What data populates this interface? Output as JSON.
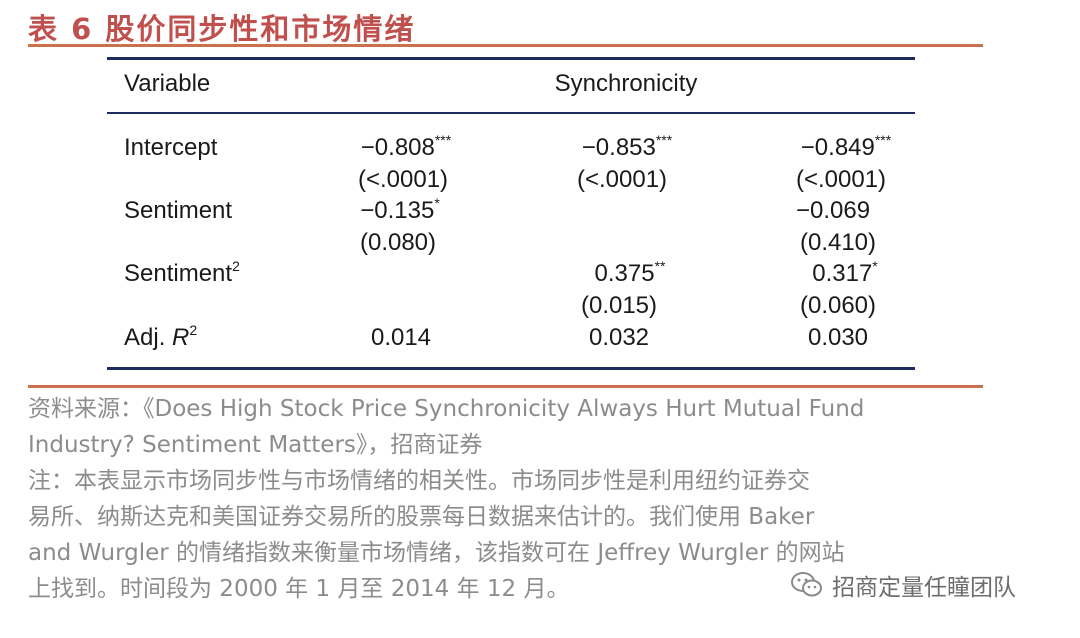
{
  "title": "表 6  股价同步性和市场情绪",
  "table": {
    "header": {
      "variable": "Variable",
      "group": "Synchronicity"
    },
    "rows": [
      {
        "label": "Intercept",
        "cells": [
          {
            "value": "−0.808",
            "stars": "***",
            "se": "(<.0001)"
          },
          {
            "value": "−0.853",
            "stars": "***",
            "se": "(<.0001)"
          },
          {
            "value": "−0.849",
            "stars": "***",
            "se": "(<.0001)"
          }
        ]
      },
      {
        "label": "Sentiment",
        "cells": [
          {
            "value": "−0.135",
            "stars": "*",
            "se": "(0.080)"
          },
          {
            "value": "",
            "stars": "",
            "se": ""
          },
          {
            "value": "−0.069",
            "stars": "",
            "se": "(0.410)"
          }
        ]
      },
      {
        "label": "Sentiment",
        "label_sup": "2",
        "cells": [
          {
            "value": "",
            "stars": "",
            "se": ""
          },
          {
            "value": "0.375",
            "stars": "**",
            "se": "(0.015)"
          },
          {
            "value": "0.317",
            "stars": "*",
            "se": "(0.060)"
          }
        ]
      },
      {
        "label": "Adj. ",
        "label_italic": "R",
        "label_sup": "2",
        "cells": [
          {
            "value": "0.014",
            "stars": "",
            "se": ""
          },
          {
            "value": "0.032",
            "stars": "",
            "se": ""
          },
          {
            "value": "0.030",
            "stars": "",
            "se": ""
          }
        ]
      }
    ]
  },
  "source": {
    "line1": "资料来源：《Does High Stock Price Synchronicity Always Hurt Mutual Fund",
    "line2": "Industry? Sentiment Matters》，招商证券",
    "note1": "注：本表显示市场同步性与市场情绪的相关性。市场同步性是利用纽约证券交",
    "note2": "易所、纳斯达克和美国证券交易所的股票每日数据来估计的。我们使用 Baker",
    "note3": "and Wurgler 的情绪指数来衡量市场情绪，该指数可在 Jeffrey Wurgler 的网站",
    "note4": "上找到。时间段为 2000 年 1 月至 2014 年 12 月。"
  },
  "watermark": {
    "text": "招商定量任瞳团队",
    "icon": "wechat-icon"
  },
  "colors": {
    "title": "#c0504d",
    "orange_rule": "#c9714a",
    "table_rule": "#1f2a5e",
    "source_text": "#8c8c8c"
  }
}
